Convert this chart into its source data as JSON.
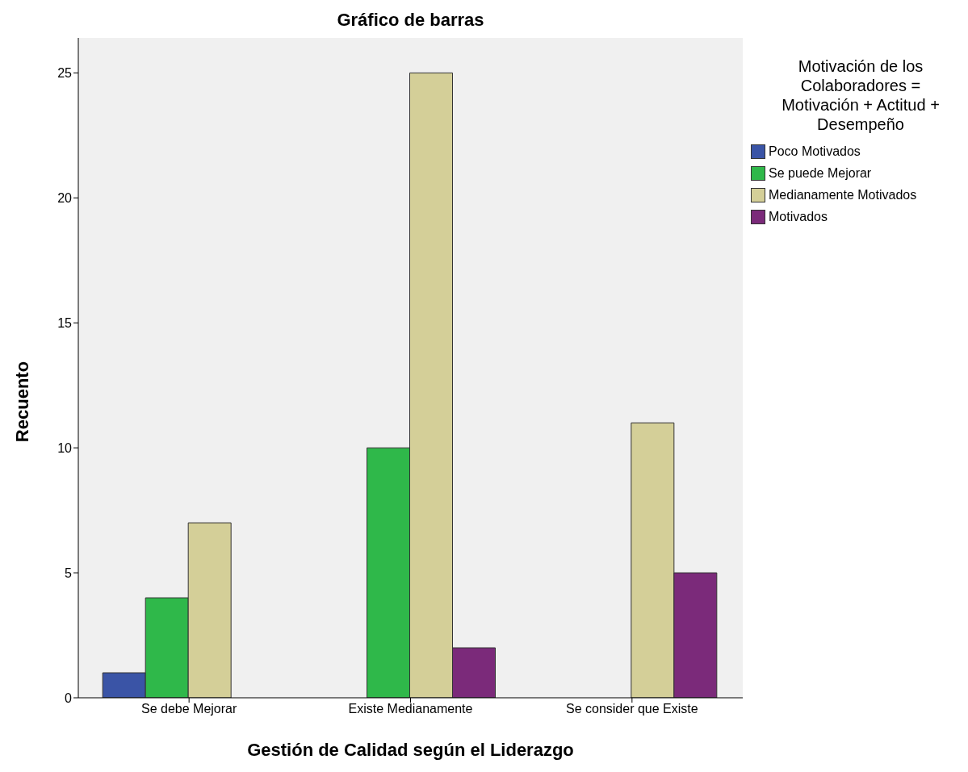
{
  "chart_data": {
    "type": "bar",
    "title": "Gráfico de barras",
    "xlabel": "Gestión de Calidad según el Liderazgo",
    "ylabel": "Recuento",
    "legend_title": "Motivación de los Colaboradores = Motivación + Actitud + Desempeño",
    "categories": [
      "Se debe Mejorar",
      "Existe Medianamente",
      "Se consider que Existe"
    ],
    "series": [
      {
        "name": "Poco Motivados",
        "color": "#3a54a6",
        "values": [
          1,
          null,
          null
        ]
      },
      {
        "name": "Se puede Mejorar",
        "color": "#2fb84a",
        "values": [
          4,
          10,
          null
        ]
      },
      {
        "name": "Medianamente Motivados",
        "color": "#d4cf98",
        "values": [
          7,
          25,
          11
        ]
      },
      {
        "name": "Motivados",
        "color": "#7b2a7a",
        "values": [
          null,
          2,
          5
        ]
      }
    ],
    "ylim": [
      0,
      26.4
    ],
    "yticks": [
      0,
      5,
      10,
      15,
      20,
      25
    ],
    "legend": "top right"
  }
}
